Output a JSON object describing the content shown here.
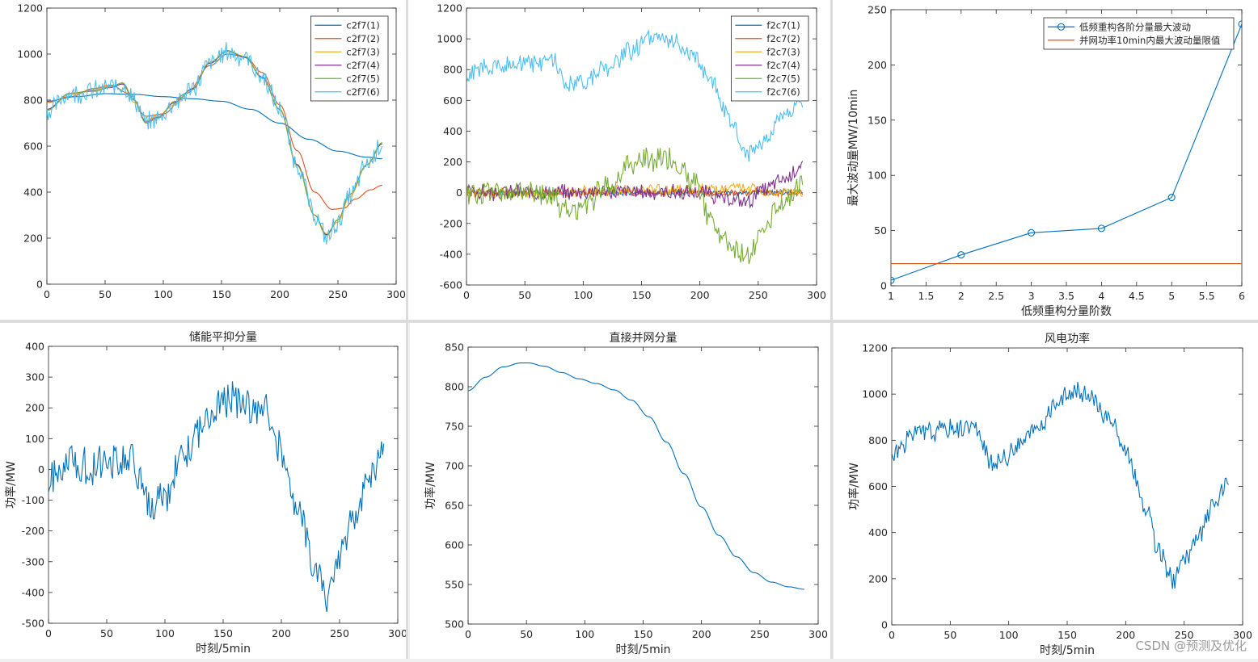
{
  "watermark": "CSDN @预测及优化",
  "chart_data": [
    {
      "type": "line",
      "title": "",
      "xlabel": "",
      "ylabel": "",
      "xlim": [
        0,
        300
      ],
      "ylim": [
        0,
        1200
      ],
      "xticks": [
        0,
        50,
        100,
        150,
        200,
        250,
        300
      ],
      "yticks": [
        0,
        200,
        400,
        600,
        800,
        1000,
        1200
      ],
      "grid": false,
      "legend_position": "top-right",
      "series": [
        {
          "name": "c2f7(1)",
          "color": "#0072BD",
          "kind": "smooth",
          "x": [
            0,
            25,
            50,
            75,
            100,
            125,
            150,
            175,
            200,
            225,
            250,
            275,
            288
          ],
          "y": [
            795,
            815,
            828,
            825,
            815,
            806,
            795,
            760,
            700,
            630,
            578,
            552,
            545
          ]
        },
        {
          "name": "c2f7(2)",
          "color": "#D95319",
          "kind": "smooth",
          "x": [
            0,
            20,
            40,
            55,
            70,
            85,
            100,
            120,
            140,
            155,
            170,
            185,
            200,
            215,
            230,
            245,
            255,
            265,
            278,
            288
          ],
          "y": [
            790,
            815,
            850,
            865,
            830,
            730,
            740,
            830,
            950,
            1000,
            990,
            920,
            780,
            580,
            400,
            325,
            330,
            370,
            410,
            430
          ]
        },
        {
          "name": "c2f7(3)",
          "color": "#EDB120",
          "kind": "smooth",
          "x": [
            0,
            20,
            40,
            55,
            65,
            75,
            85,
            95,
            110,
            125,
            140,
            155,
            170,
            185,
            200,
            215,
            230,
            240,
            250,
            260,
            275,
            288
          ],
          "y": [
            760,
            825,
            845,
            860,
            870,
            790,
            710,
            730,
            780,
            850,
            960,
            1010,
            990,
            900,
            760,
            520,
            300,
            220,
            270,
            380,
            520,
            610
          ]
        },
        {
          "name": "c2f7(4)",
          "color": "#7E2F8E",
          "kind": "smooth",
          "x": [
            0,
            20,
            40,
            55,
            65,
            75,
            85,
            95,
            110,
            125,
            140,
            155,
            170,
            185,
            200,
            215,
            230,
            240,
            250,
            260,
            275,
            288
          ],
          "y": [
            760,
            830,
            840,
            855,
            870,
            800,
            705,
            725,
            790,
            850,
            960,
            1015,
            985,
            900,
            760,
            520,
            300,
            215,
            280,
            390,
            520,
            610
          ]
        },
        {
          "name": "c2f7(5)",
          "color": "#77AC30",
          "kind": "smooth",
          "x": [
            0,
            20,
            40,
            55,
            65,
            75,
            85,
            95,
            110,
            125,
            140,
            155,
            170,
            185,
            200,
            215,
            230,
            240,
            250,
            260,
            275,
            288
          ],
          "y": [
            755,
            830,
            838,
            858,
            875,
            800,
            700,
            720,
            795,
            845,
            965,
            1015,
            990,
            895,
            760,
            515,
            300,
            210,
            280,
            390,
            520,
            615
          ]
        },
        {
          "name": "c2f7(6)",
          "color": "#4DBEEE",
          "kind": "noisy",
          "amp": 40,
          "seed": 6,
          "x": [
            0,
            20,
            40,
            55,
            65,
            75,
            85,
            95,
            110,
            125,
            140,
            155,
            170,
            185,
            200,
            215,
            230,
            240,
            250,
            260,
            275,
            288
          ],
          "y": [
            750,
            830,
            840,
            855,
            870,
            800,
            700,
            720,
            790,
            850,
            960,
            1010,
            985,
            900,
            760,
            520,
            300,
            200,
            270,
            380,
            520,
            615
          ]
        }
      ]
    },
    {
      "type": "line",
      "title": "",
      "xlabel": "",
      "ylabel": "",
      "xlim": [
        0,
        300
      ],
      "ylim": [
        -600,
        1200
      ],
      "xticks": [
        0,
        50,
        100,
        150,
        200,
        250,
        300
      ],
      "yticks": [
        -600,
        -400,
        -200,
        0,
        200,
        400,
        600,
        800,
        1000,
        1200
      ],
      "grid": false,
      "legend_position": "top-right",
      "series": [
        {
          "name": "f2c7(1)",
          "color": "#0072BD",
          "kind": "noisy",
          "amp": 14,
          "seed": 11,
          "x": [
            0,
            288
          ],
          "y": [
            0,
            0
          ]
        },
        {
          "name": "f2c7(2)",
          "color": "#D95319",
          "kind": "noisy",
          "amp": 22,
          "seed": 12,
          "x": [
            0,
            288
          ],
          "y": [
            0,
            0
          ]
        },
        {
          "name": "f2c7(3)",
          "color": "#EDB120",
          "kind": "noisy",
          "amp": 32,
          "seed": 13,
          "x": [
            0,
            220,
            240,
            260,
            288
          ],
          "y": [
            0,
            20,
            30,
            0,
            0
          ]
        },
        {
          "name": "f2c7(4)",
          "color": "#7E2F8E",
          "kind": "noisy",
          "amp": 45,
          "seed": 14,
          "x": [
            0,
            80,
            120,
            200,
            225,
            240,
            255,
            270,
            288
          ],
          "y": [
            0,
            0,
            10,
            0,
            -50,
            -60,
            20,
            80,
            180
          ]
        },
        {
          "name": "f2c7(5)",
          "color": "#77AC30",
          "kind": "noisy",
          "amp": 70,
          "seed": 15,
          "x": [
            0,
            70,
            85,
            100,
            120,
            140,
            155,
            175,
            195,
            210,
            225,
            240,
            255,
            270,
            288
          ],
          "y": [
            0,
            0,
            -120,
            -80,
            40,
            180,
            220,
            220,
            60,
            -180,
            -340,
            -400,
            -250,
            -60,
            60
          ]
        },
        {
          "name": "f2c7(6)",
          "color": "#4DBEEE",
          "kind": "noisy",
          "amp": 55,
          "seed": 16,
          "x": [
            0,
            20,
            40,
            60,
            75,
            85,
            100,
            120,
            140,
            155,
            175,
            195,
            210,
            225,
            240,
            255,
            270,
            288
          ],
          "y": [
            760,
            820,
            840,
            850,
            860,
            700,
            720,
            800,
            920,
            1010,
            990,
            880,
            700,
            480,
            250,
            340,
            480,
            600
          ]
        }
      ]
    },
    {
      "type": "line",
      "title": "",
      "xlabel": "低频重构分量阶数",
      "ylabel": "最大波动量MW/10min",
      "xlim": [
        1,
        6
      ],
      "ylim": [
        0,
        250
      ],
      "xticks": [
        1,
        1.5,
        2,
        2.5,
        3,
        3.5,
        4,
        4.5,
        5,
        5.5,
        6
      ],
      "yticks": [
        0,
        50,
        100,
        150,
        200,
        250
      ],
      "grid": false,
      "legend_position": "top-right",
      "series": [
        {
          "name": "低频重构各阶分量最大波动",
          "color": "#0072BD",
          "kind": "marker",
          "x": [
            1,
            2,
            3,
            4,
            5,
            6
          ],
          "y": [
            5,
            28,
            48,
            52,
            80,
            237
          ]
        },
        {
          "name": "并网功率10min内最大波动量限值",
          "color": "#D95319",
          "kind": "plain",
          "x": [
            1,
            6
          ],
          "y": [
            20,
            20
          ]
        }
      ]
    },
    {
      "type": "line",
      "title": "储能平抑分量",
      "xlabel": "时刻/5min",
      "ylabel": "功率/MW",
      "xlim": [
        0,
        300
      ],
      "ylim": [
        -500,
        400
      ],
      "xticks": [
        0,
        50,
        100,
        150,
        200,
        250,
        300
      ],
      "yticks": [
        -500,
        -400,
        -300,
        -200,
        -100,
        0,
        100,
        200,
        300,
        400
      ],
      "grid": false,
      "series": [
        {
          "name": "",
          "color": "#0072BD",
          "kind": "noisy",
          "amp": 55,
          "seed": 21,
          "x": [
            0,
            20,
            40,
            60,
            70,
            80,
            88,
            100,
            115,
            130,
            145,
            155,
            170,
            185,
            200,
            215,
            230,
            240,
            250,
            262,
            275,
            288
          ],
          "y": [
            -40,
            20,
            15,
            30,
            50,
            -50,
            -130,
            -80,
            40,
            130,
            200,
            230,
            210,
            190,
            60,
            -150,
            -330,
            -400,
            -290,
            -170,
            -40,
            70
          ]
        }
      ]
    },
    {
      "type": "line",
      "title": "直接并网分量",
      "xlabel": "时刻/5min",
      "ylabel": "功率/MW",
      "xlim": [
        0,
        300
      ],
      "ylim": [
        500,
        850
      ],
      "xticks": [
        0,
        50,
        100,
        150,
        200,
        250,
        300
      ],
      "yticks": [
        500,
        550,
        600,
        650,
        700,
        750,
        800,
        850
      ],
      "grid": false,
      "series": [
        {
          "name": "",
          "color": "#0072BD",
          "kind": "smooth",
          "x": [
            0,
            15,
            30,
            45,
            52,
            65,
            80,
            95,
            110,
            125,
            140,
            155,
            170,
            185,
            200,
            215,
            230,
            245,
            260,
            275,
            288
          ],
          "y": [
            795,
            812,
            825,
            830,
            830,
            826,
            818,
            810,
            804,
            796,
            783,
            762,
            730,
            690,
            648,
            612,
            585,
            565,
            553,
            547,
            544
          ]
        }
      ]
    },
    {
      "type": "line",
      "title": "风电功率",
      "xlabel": "时刻/5min",
      "ylabel": "功率/MW",
      "xlim": [
        0,
        300
      ],
      "ylim": [
        0,
        1200
      ],
      "xticks": [
        0,
        50,
        100,
        150,
        200,
        250,
        300
      ],
      "yticks": [
        0,
        200,
        400,
        600,
        800,
        1000,
        1200
      ],
      "grid": false,
      "series": [
        {
          "name": "",
          "color": "#0072BD",
          "kind": "noisy",
          "amp": 40,
          "seed": 31,
          "x": [
            0,
            20,
            40,
            55,
            70,
            75,
            85,
            95,
            110,
            125,
            140,
            155,
            170,
            185,
            200,
            215,
            230,
            240,
            250,
            262,
            275,
            288
          ],
          "y": [
            740,
            830,
            840,
            855,
            870,
            800,
            700,
            720,
            790,
            850,
            960,
            1010,
            985,
            900,
            760,
            520,
            300,
            200,
            270,
            380,
            520,
            615
          ]
        }
      ]
    }
  ]
}
